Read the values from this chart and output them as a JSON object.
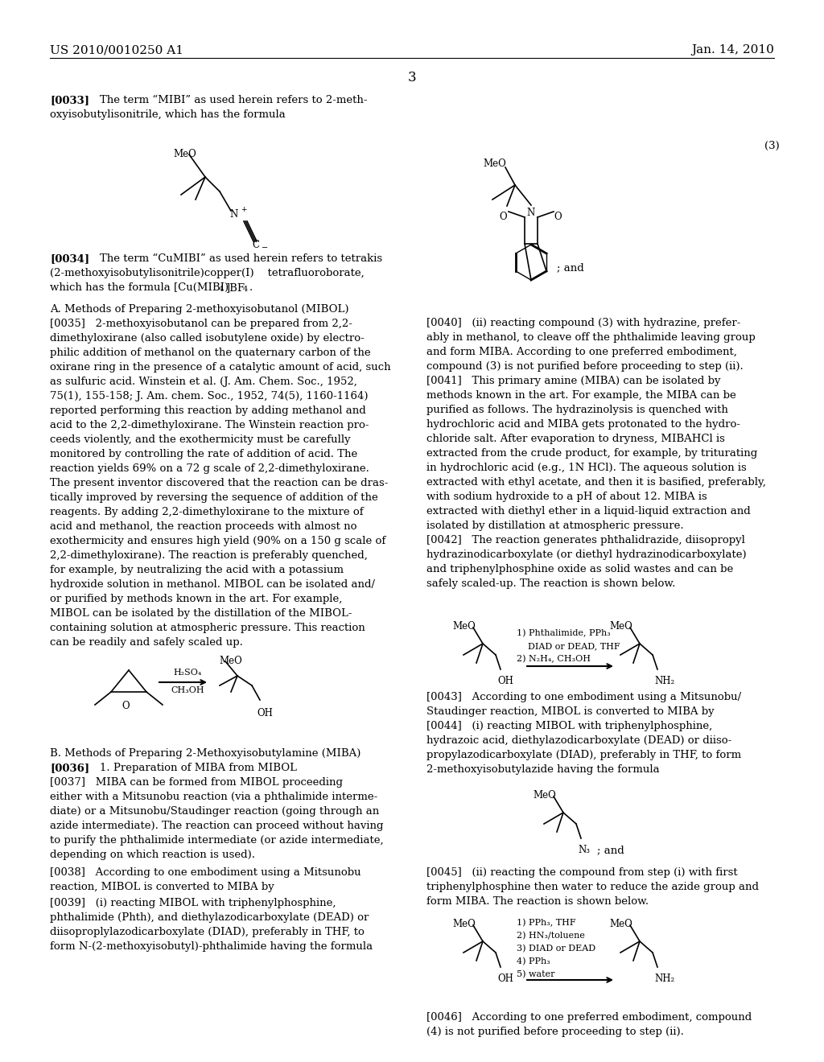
{
  "bg": "#ffffff",
  "header_left": "US 2010/0010250 A1",
  "header_right": "Jan. 14, 2010",
  "page_num": "3",
  "lh": 0.0128,
  "fs": 9.5,
  "fs_small": 8.0,
  "fs_sub": 7.5
}
